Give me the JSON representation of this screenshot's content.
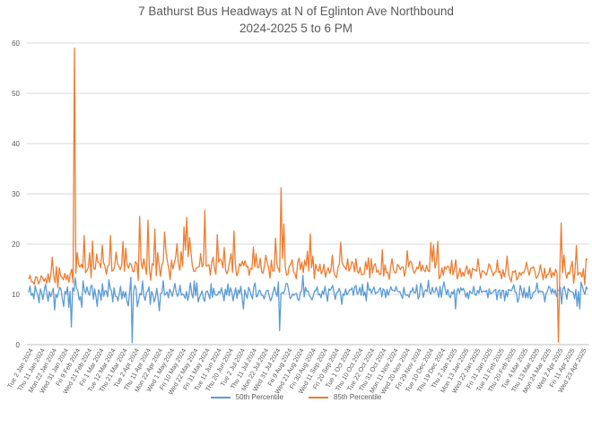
{
  "chart_data": {
    "type": "line",
    "title": "7 Bathurst Bus Headways at N of Eglinton Ave Northbound",
    "subtitle": "2024-2025 5 to 6 PM",
    "xlabel": "",
    "ylabel": "",
    "ylim": [
      0,
      60
    ],
    "yticks": [
      "0",
      "10",
      "20",
      "30",
      "40",
      "50",
      "60"
    ],
    "grid": true,
    "legend_position": "bottom",
    "x_tick_labels": [
      "Tue 2 Jan 2024",
      "Thu 11 Jan 2024",
      "Mon 22 Jan 2024",
      "Wed 31 Jan 2024",
      "Fri 9 Feb 2024",
      "Wed 21 Feb 2024",
      "Fri 1 Mar 2024",
      "Tue 12 Mar 2024",
      "Thu 21 Mar 2024",
      "Tue 2 Apr 2024",
      "Thu 11 Apr 2024",
      "Mon 22 Apr 2024",
      "Wed 1 May 2024",
      "Fri 10 May 2024",
      "Wed 22 May 2024",
      "Fri 31 May 2024",
      "Tue 11 Jun 2024",
      "Thu 20 Jun 2024",
      "Tue 2 Jul 2024",
      "Thu 11 Jul 2024",
      "Mon 22 Jul 2024",
      "Wed 31 Jul 2024",
      "Fri 9 Aug 2024",
      "Wed 21 Aug 2024",
      "Fri 30 Aug 2024",
      "Wed 11 Sep 2024",
      "Fri 20 Sep 2024",
      "Tue 1 Oct 2024",
      "Thu 10 Oct 2024",
      "Tue 22 Oct 2024",
      "Thu 31 Oct 2024",
      "Mon 11 Nov 2024",
      "Wed 20 Nov 2024",
      "Fri 29 Nov 2024",
      "Tue 10 Dec 2024",
      "Thu 19 Dec 2024",
      "Thu 2 Jan 2025",
      "Mon 13 Jan 2025",
      "Wed 22 Jan 2025",
      "Fri 31 Jan 2025",
      "Tue 11 Feb 2025",
      "Thu 20 Feb 2025",
      "Tue 4 Mar 2025",
      "Thu 13 Mar 2025",
      "Mon 24 Mar 2025",
      "Wed 2 Apr 2025",
      "Fri 11 Apr 2025",
      "Wed 23 Apr 2025"
    ],
    "series": [
      {
        "name": "50th Percentile",
        "color": "#5B9BD5",
        "values": [
          10.4,
          11.6,
          9.8,
          10.2,
          9.1,
          11.7,
          10.5,
          10.0,
          8.3,
          11.1,
          10.3,
          9.0,
          10.7,
          12.0,
          10.3,
          8.6,
          10.6,
          9.5,
          10.4,
          11.2,
          6.9,
          10.0,
          9.4,
          10.4,
          11.4,
          11.0,
          9.1,
          7.6,
          10.6,
          10.1,
          11.5,
          7.4,
          10.6,
          3.5,
          11.3,
          10.6,
          13.3,
          11.2,
          10.7,
          8.9,
          9.6,
          7.4,
          12.7,
          10.8,
          10.2,
          11.5,
          10.4,
          9.8,
          11.6,
          11.8,
          9.0,
          11.1,
          9.5,
          7.6,
          10.9,
          10.4,
          8.8,
          12.1,
          9.6,
          10.7,
          10.7,
          9.5,
          12.9,
          11.1,
          10.7,
          8.5,
          11.3,
          9.6,
          9.6,
          8.7,
          10.1,
          11.6,
          9.1,
          10.6,
          9.4,
          10.5,
          8.6,
          7.7,
          10.5,
          13.4,
          0.4,
          10.3,
          11.8,
          11.2,
          7.5,
          8.8,
          10.2,
          9.9,
          12.7,
          9.7,
          8.8,
          10.4,
          10.6,
          11.5,
          8.0,
          10.6,
          10.0,
          8.5,
          9.4,
          11.2,
          9.3,
          6.7,
          10.2,
          10.3,
          12.7,
          9.8,
          10.1,
          10.5,
          9.3,
          11.0,
          10.5,
          9.6,
          10.8,
          12.2,
          10.5,
          9.6,
          10.2,
          11.8,
          9.8,
          10.1,
          9.8,
          9.2,
          10.6,
          8.8,
          10.2,
          12.3,
          10.2,
          9.3,
          12.7,
          9.7,
          12.3,
          8.5,
          9.4,
          10.0,
          10.7,
          9.3,
          8.6,
          10.5,
          10.7,
          10.0,
          9.1,
          12.1,
          9.4,
          11.2,
          10.0,
          9.8,
          9.9,
          10.6,
          10.2,
          11.3,
          10.2,
          8.7,
          11.0,
          9.9,
          12.1,
          9.7,
          11.3,
          10.5,
          8.7,
          10.1,
          11.3,
          9.2,
          10.9,
          10.2,
          11.6,
          9.3,
          7.1,
          10.9,
          9.9,
          9.2,
          11.4,
          10.8,
          9.8,
          9.1,
          11.5,
          12.3,
          9.5,
          9.7,
          10.8,
          10.7,
          9.8,
          9.8,
          9.1,
          10.1,
          10.8,
          10.8,
          9.6,
          8.7,
          9.4,
          10.5,
          11.5,
          10.3,
          9.6,
          12.5,
          2.8,
          10.1,
          10.4,
          10.2,
          10.8,
          12.2,
          12.1,
          10.8,
          9.2,
          9.4,
          10.1,
          9.8,
          10.1,
          10.2,
          9.0,
          8.8,
          10.4,
          10.6,
          13.8,
          9.5,
          11.4,
          10.6,
          10.7,
          9.8,
          9.4,
          8.9,
          9.7,
          10.7,
          10.7,
          11.5,
          9.9,
          10.1,
          9.3,
          10.7,
          10.0,
          11.6,
          10.1,
          8.6,
          11.1,
          10.8,
          11.2,
          11.8,
          10.4,
          9.0,
          10.4,
          10.4,
          11.2,
          10.4,
          8.0,
          10.1,
          9.8,
          11.1,
          9.9,
          10.3,
          10.9,
          10.9,
          11.3,
          9.8,
          11.5,
          11.8,
          10.0,
          10.4,
          11.4,
          9.8,
          12.0,
          9.7,
          10.5,
          8.7,
          12.4,
          10.8,
          11.1,
          10.2,
          10.9,
          11.5,
          10.1,
          10.4,
          10.4,
          11.0,
          11.3,
          9.5,
          11.1,
          10.8,
          9.3,
          11.0,
          9.8,
          10.7,
          11.5,
          10.8,
          10.8,
          10.6,
          11.6,
          10.7,
          10.5,
          10.5,
          9.8,
          9.2,
          11.4,
          10.0,
          9.8,
          9.9,
          9.4,
          10.6,
          10.5,
          11.3,
          10.3,
          10.3,
          11.9,
          9.1,
          9.6,
          12.2,
          11.3,
          9.4,
          10.6,
          10.9,
          10.5,
          12.8,
          10.3,
          10.1,
          11.4,
          10.4,
          10.4,
          11.4,
          10.6,
          9.4,
          11.6,
          9.4,
          11.2,
          12.5,
          11.1,
          9.9,
          11.0,
          9.7,
          9.3,
          10.5,
          10.1,
          10.9,
          7.1,
          10.6,
          11.2,
          10.2,
          11.3,
          10.8,
          11.2,
          10.5,
          9.4,
          10.4,
          9.1,
          10.7,
          10.3,
          10.2,
          11.6,
          9.9,
          9.8,
          10.8,
          10.2,
          11.6,
          10.4,
          10.6,
          10.7,
          10.5,
          10.8,
          9.3,
          11.1,
          10.1,
          10.3,
          10.4,
          10.8,
          11.0,
          8.9,
          10.7,
          10.9,
          9.2,
          10.8,
          10.8,
          8.7,
          10.7,
          9.5,
          11.0,
          10.8,
          10.7,
          11.2,
          11.9,
          10.4,
          10.4,
          8.4,
          9.2,
          11.8,
          10.8,
          9.4,
          11.3,
          9.3,
          10.4,
          9.3,
          11.6,
          9.1,
          9.4,
          10.4,
          10.4,
          10.8,
          12.3,
          10.3,
          10.7,
          10.5,
          10.6,
          10.2,
          8.5,
          10.2,
          10.6,
          11.6,
          11.4,
          10.2,
          11.1,
          10.2,
          10.9,
          9.6,
          10.8,
          10.8,
          11.4,
          8.1,
          11.1,
          11.6,
          10.3,
          9.0,
          11.2,
          10.7,
          10.6,
          10.5,
          10.3,
          9.1,
          11.0,
          7.6,
          10.6,
          7.1,
          12.4,
          11.6,
          10.6,
          10.0,
          11.5,
          11.0
        ]
      },
      {
        "name": "85th Percentile",
        "color": "#ED7D31",
        "values": [
          13.0,
          13.8,
          12.5,
          12.5,
          12.0,
          13.5,
          13.4,
          12.1,
          12.6,
          13.7,
          13.3,
          12.6,
          13.2,
          12.2,
          14.1,
          12.4,
          14.0,
          17.4,
          13.8,
          12.3,
          15.5,
          11.3,
          15.3,
          13.7,
          13.4,
          12.9,
          14.2,
          12.9,
          13.9,
          12.4,
          14.1,
          15.0,
          12.3,
          59.0,
          14.2,
          18.3,
          16.0,
          15.4,
          16.0,
          15.2,
          21.7,
          14.3,
          14.7,
          15.4,
          18.3,
          13.3,
          20.6,
          15.1,
          15.0,
          18.0,
          16.4,
          16.2,
          15.3,
          19.8,
          16.3,
          15.6,
          14.0,
          15.7,
          15.8,
          21.7,
          14.6,
          14.8,
          15.6,
          18.4,
          16.2,
          15.6,
          14.9,
          15.7,
          20.5,
          14.6,
          19.2,
          15.9,
          15.2,
          16.2,
          16.0,
          14.6,
          14.5,
          16.5,
          16.1,
          12.8,
          25.5,
          16.7,
          15.1,
          17.1,
          15.4,
          14.0,
          24.8,
          15.2,
          12.8,
          16.1,
          15.8,
          23.0,
          13.7,
          18.3,
          15.9,
          13.6,
          15.8,
          16.5,
          22.4,
          18.6,
          16.6,
          15.1,
          12.9,
          16.8,
          15.0,
          16.2,
          17.5,
          20.1,
          16.0,
          14.8,
          18.5,
          15.6,
          23.4,
          18.8,
          25.3,
          17.5,
          21.3,
          18.4,
          15.7,
          14.6,
          14.6,
          15.3,
          15.4,
          15.5,
          18.1,
          15.5,
          15.8,
          26.7,
          15.6,
          15.8,
          15.9,
          13.8,
          16.3,
          17.4,
          15.1,
          14.0,
          21.9,
          16.4,
          17.0,
          16.7,
          15.3,
          19.3,
          14.7,
          14.1,
          15.0,
          16.7,
          18.1,
          14.4,
          22.6,
          16.2,
          13.7,
          14.4,
          16.1,
          15.6,
          16.6,
          15.7,
          16.7,
          15.5,
          15.6,
          13.8,
          15.2,
          15.0,
          19.4,
          15.5,
          18.1,
          15.4,
          15.3,
          17.2,
          14.5,
          14.2,
          15.6,
          17.8,
          16.3,
          15.3,
          13.2,
          16.8,
          14.6,
          14.7,
          21.2,
          16.0,
          15.1,
          14.4,
          31.2,
          17.2,
          24.0,
          15.5,
          13.8,
          14.0,
          15.7,
          16.0,
          16.9,
          14.5,
          14.1,
          13.1,
          16.4,
          17.2,
          14.9,
          16.4,
          14.3,
          16.8,
          15.6,
          18.6,
          14.7,
          22.0,
          15.3,
          17.6,
          13.1,
          16.0,
          15.0,
          14.6,
          16.0,
          14.1,
          14.6,
          16.0,
          13.4,
          14.6,
          15.3,
          14.2,
          15.0,
          17.8,
          14.5,
          13.7,
          13.3,
          15.3,
          16.0,
          20.4,
          16.3,
          15.7,
          15.4,
          14.9,
          17.1,
          14.6,
          15.2,
          16.5,
          16.2,
          14.5,
          17.1,
          14.6,
          14.2,
          15.4,
          13.9,
          14.0,
          14.1,
          16.5,
          14.9,
          17.3,
          13.3,
          17.1,
          14.3,
          15.8,
          16.1,
          14.4,
          14.8,
          14.0,
          14.0,
          18.9,
          13.6,
          15.9,
          14.3,
          14.4,
          13.0,
          15.4,
          17.1,
          15.0,
          14.3,
          14.3,
          16.0,
          15.6,
          14.9,
          15.4,
          15.5,
          13.6,
          15.0,
          18.7,
          15.5,
          16.6,
          16.4,
          15.1,
          14.2,
          14.6,
          15.4,
          15.1,
          16.6,
          14.6,
          15.8,
          14.8,
          14.5,
          15.8,
          14.7,
          14.5,
          20.3,
          16.5,
          19.8,
          15.2,
          16.5,
          20.5,
          13.1,
          13.6,
          15.3,
          13.8,
          15.5,
          15.0,
          15.6,
          15.5,
          14.1,
          16.8,
          13.9,
          15.0,
          16.9,
          13.1,
          14.0,
          15.2,
          13.5,
          14.4,
          13.6,
          14.9,
          15.7,
          14.0,
          15.0,
          13.2,
          15.2,
          14.9,
          14.9,
          14.6,
          17.1,
          14.9,
          13.2,
          14.7,
          14.6,
          14.3,
          13.8,
          14.8,
          16.1,
          15.4,
          14.6,
          13.7,
          14.4,
          14.5,
          16.8,
          14.3,
          14.6,
          13.1,
          14.9,
          13.5,
          14.6,
          17.6,
          14.1,
          13.2,
          12.5,
          14.6,
          14.4,
          14.8,
          12.9,
          13.3,
          14.4,
          13.8,
          14.4,
          14.3,
          15.0,
          16.4,
          14.9,
          13.8,
          15.2,
          15.2,
          15.5,
          14.5,
          13.2,
          13.6,
          14.2,
          15.9,
          14.4,
          12.9,
          15.2,
          13.2,
          14.0,
          14.0,
          15.3,
          13.3,
          14.4,
          13.7,
          15.0,
          14.3,
          0.5,
          14.3,
          24.2,
          14.3,
          17.8,
          14.7,
          13.2,
          14.4,
          14.0,
          15.5,
          16.6,
          12.2,
          14.8,
          19.7,
          13.8,
          14.3,
          14.3,
          13.4,
          15.1,
          11.9,
          17.1,
          16.9
        ]
      }
    ]
  }
}
